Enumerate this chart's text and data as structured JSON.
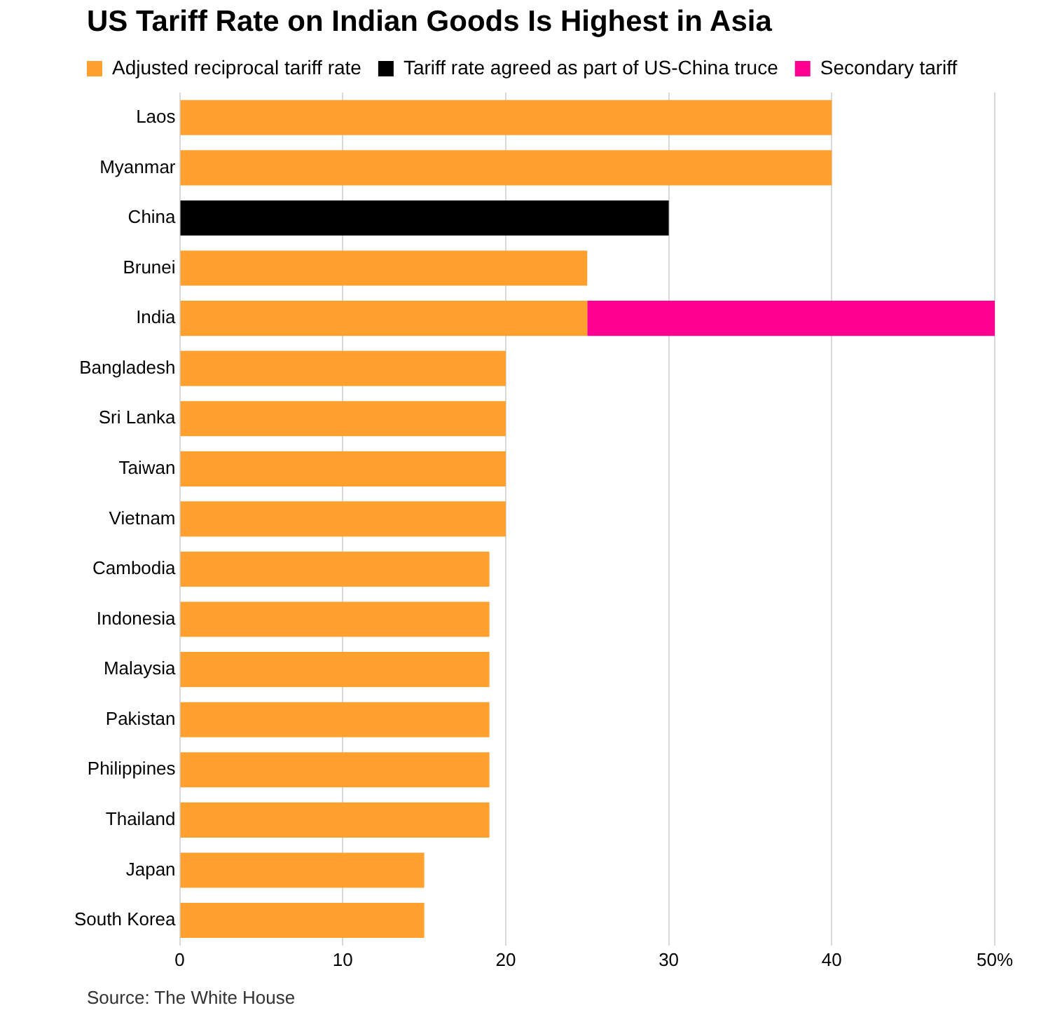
{
  "chart_data": {
    "type": "bar",
    "title": "US Tariff Rate on Indian Goods Is Highest in Asia",
    "orientation": "horizontal",
    "stacked": true,
    "categories": [
      "Laos",
      "Myanmar",
      "China",
      "Brunei",
      "India",
      "Bangladesh",
      "Sri Lanka",
      "Taiwan",
      "Vietnam",
      "Cambodia",
      "Indonesia",
      "Malaysia",
      "Pakistan",
      "Philippines",
      "Thailand",
      "Japan",
      "South Korea"
    ],
    "series": [
      {
        "name": "Adjusted reciprocal tariff rate",
        "color": "#ffa02f",
        "values": [
          40,
          40,
          null,
          25,
          25,
          20,
          20,
          20,
          20,
          19,
          19,
          19,
          19,
          19,
          19,
          15,
          15
        ]
      },
      {
        "name": "Tariff rate agreed as part of US-China truce",
        "color": "#000000",
        "values": [
          null,
          null,
          30,
          null,
          null,
          null,
          null,
          null,
          null,
          null,
          null,
          null,
          null,
          null,
          null,
          null,
          null
        ]
      },
      {
        "name": "Secondary tariff",
        "color": "#ff0090",
        "values": [
          null,
          null,
          null,
          null,
          25,
          null,
          null,
          null,
          null,
          null,
          null,
          null,
          null,
          null,
          null,
          null,
          null
        ]
      }
    ],
    "xlim": [
      0,
      50
    ],
    "xticks": [
      0,
      10,
      20,
      30,
      40,
      {
        "value": 50,
        "label": "50%"
      }
    ],
    "grid": "x",
    "legend": "top left",
    "annotations": [
      "Source: The White House"
    ]
  }
}
